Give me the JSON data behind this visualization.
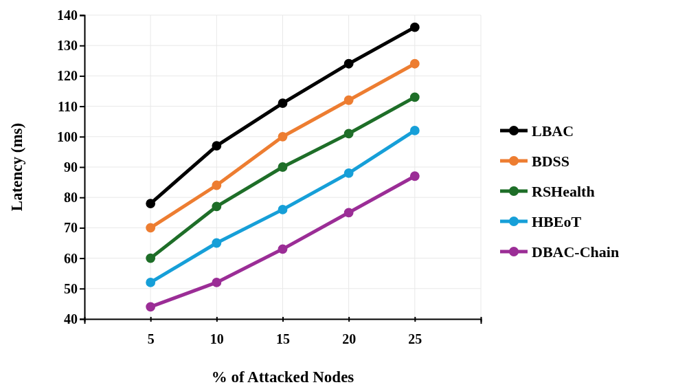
{
  "chart_data": {
    "type": "line",
    "xlabel": "% of Attacked Nodes",
    "ylabel": "Latency (ms)",
    "x": [
      5,
      10,
      15,
      20,
      25
    ],
    "xlim": [
      0,
      30
    ],
    "xticks": [
      {
        "value": 0,
        "label": null
      },
      5,
      10,
      15,
      20,
      25,
      {
        "value": 30,
        "label": null
      }
    ],
    "ylim": [
      40,
      140
    ],
    "yticks": [
      40,
      50,
      60,
      70,
      80,
      90,
      100,
      110,
      120,
      130,
      140
    ],
    "grid": true,
    "legend": "right",
    "marker": "circle",
    "line_style": "solid",
    "series": [
      {
        "name": "LBAC",
        "color": "#000000",
        "values": [
          78,
          97,
          111,
          124,
          136
        ]
      },
      {
        "name": "BDSS",
        "color": "#ed7d31",
        "values": [
          70,
          84,
          100,
          112,
          124
        ]
      },
      {
        "name": "RSHealth",
        "color": "#1e6e28",
        "values": [
          60,
          77,
          90,
          101,
          113
        ]
      },
      {
        "name": "HBEoT",
        "color": "#169fd8",
        "values": [
          52,
          65,
          76,
          88,
          102
        ]
      },
      {
        "name": "DBAC-Chain",
        "color": "#9b2d96",
        "values": [
          44,
          52,
          63,
          75,
          87
        ]
      }
    ]
  }
}
